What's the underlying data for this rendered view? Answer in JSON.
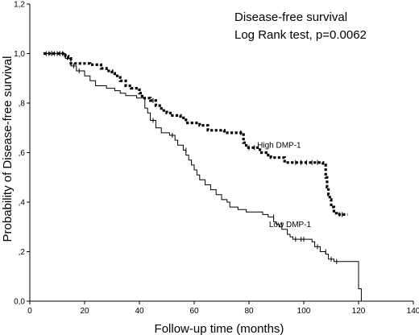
{
  "chart_data": {
    "type": "line",
    "title": "Disease-free survival",
    "subtitle": "Log Rank test,  p=0.0062",
    "xlabel": "Follow-up time (months)",
    "ylabel": "Probability of Disease-free survival",
    "xlim": [
      0,
      140
    ],
    "ylim": [
      0,
      1.2
    ],
    "x_ticks": [
      0,
      20,
      40,
      60,
      80,
      100,
      120,
      140
    ],
    "y_ticks": [
      {
        "value": 0.0,
        "label": "0,0"
      },
      {
        "value": 0.2,
        "label": ",2"
      },
      {
        "value": 0.4,
        "label": ",4"
      },
      {
        "value": 0.6,
        "label": ",6"
      },
      {
        "value": 0.8,
        "label": ",8"
      },
      {
        "value": 1.0,
        "label": "1,0"
      },
      {
        "value": 1.2,
        "label": "1,2"
      }
    ],
    "grid": false,
    "legend": "none",
    "series": [
      {
        "name": "High DMP-1",
        "style": "dotted",
        "label_at": [
          91,
          0.62
        ],
        "steps": [
          [
            5,
            1.0
          ],
          [
            13,
            0.99
          ],
          [
            14,
            0.98
          ],
          [
            15,
            0.96
          ],
          [
            22,
            0.955
          ],
          [
            26,
            0.94
          ],
          [
            28,
            0.93
          ],
          [
            30,
            0.92
          ],
          [
            31,
            0.91
          ],
          [
            33,
            0.89
          ],
          [
            35,
            0.87
          ],
          [
            37,
            0.86
          ],
          [
            40,
            0.84
          ],
          [
            41,
            0.82
          ],
          [
            44,
            0.81
          ],
          [
            46,
            0.79
          ],
          [
            48,
            0.77
          ],
          [
            50,
            0.76
          ],
          [
            52,
            0.75
          ],
          [
            55,
            0.74
          ],
          [
            57,
            0.72
          ],
          [
            62,
            0.71
          ],
          [
            65,
            0.69
          ],
          [
            71,
            0.68
          ],
          [
            78,
            0.64
          ],
          [
            79,
            0.62
          ],
          [
            84,
            0.6
          ],
          [
            87,
            0.59
          ],
          [
            88,
            0.58
          ],
          [
            93,
            0.56
          ],
          [
            107,
            0.55
          ],
          [
            108,
            0.5
          ],
          [
            108.5,
            0.46
          ],
          [
            109,
            0.43
          ],
          [
            109.5,
            0.41
          ],
          [
            110,
            0.38
          ],
          [
            111,
            0.355
          ],
          [
            112,
            0.35
          ],
          [
            116,
            0.35
          ]
        ],
        "censored": [
          [
            6,
            1.0
          ],
          [
            7,
            1.0
          ],
          [
            8,
            1.0
          ],
          [
            9,
            1.0
          ],
          [
            10,
            1.0
          ],
          [
            11,
            1.0
          ],
          [
            12,
            1.0
          ],
          [
            45,
            0.81
          ],
          [
            77,
            0.68
          ],
          [
            80,
            0.62
          ],
          [
            82,
            0.62
          ],
          [
            97,
            0.56
          ],
          [
            99,
            0.56
          ],
          [
            101,
            0.56
          ],
          [
            103,
            0.56
          ],
          [
            105,
            0.56
          ],
          [
            113,
            0.35
          ],
          [
            114,
            0.35
          ]
        ]
      },
      {
        "name": "Low DMP-1",
        "style": "solid",
        "label_at": [
          95,
          0.3
        ],
        "steps": [
          [
            5,
            1.0
          ],
          [
            13,
            0.98
          ],
          [
            15,
            0.95
          ],
          [
            17,
            0.93
          ],
          [
            20,
            0.91
          ],
          [
            22,
            0.89
          ],
          [
            24,
            0.87
          ],
          [
            28,
            0.86
          ],
          [
            31,
            0.85
          ],
          [
            33,
            0.84
          ],
          [
            35,
            0.83
          ],
          [
            39,
            0.82
          ],
          [
            42,
            0.78
          ],
          [
            43,
            0.76
          ],
          [
            44,
            0.73
          ],
          [
            46,
            0.7
          ],
          [
            48,
            0.68
          ],
          [
            51,
            0.67
          ],
          [
            53,
            0.65
          ],
          [
            54,
            0.63
          ],
          [
            56,
            0.61
          ],
          [
            57,
            0.59
          ],
          [
            58,
            0.57
          ],
          [
            59,
            0.55
          ],
          [
            60,
            0.53
          ],
          [
            61,
            0.51
          ],
          [
            62,
            0.49
          ],
          [
            64,
            0.47
          ],
          [
            66,
            0.45
          ],
          [
            68,
            0.43
          ],
          [
            70,
            0.41
          ],
          [
            72,
            0.4
          ],
          [
            73,
            0.38
          ],
          [
            76,
            0.37
          ],
          [
            79,
            0.36
          ],
          [
            85,
            0.35
          ],
          [
            87,
            0.34
          ],
          [
            89,
            0.32
          ],
          [
            90,
            0.31
          ],
          [
            91,
            0.3
          ],
          [
            92,
            0.29
          ],
          [
            94,
            0.27
          ],
          [
            95,
            0.26
          ],
          [
            96,
            0.25
          ],
          [
            103,
            0.24
          ],
          [
            104,
            0.22
          ],
          [
            106,
            0.2
          ],
          [
            108,
            0.19
          ],
          [
            109,
            0.17
          ],
          [
            111,
            0.16
          ],
          [
            120,
            0.05
          ],
          [
            121,
            0.0
          ]
        ],
        "censored": [
          [
            8,
            1.0
          ],
          [
            10,
            1.0
          ],
          [
            11,
            1.0
          ],
          [
            12,
            1.0
          ],
          [
            16,
            0.95
          ],
          [
            18,
            0.93
          ],
          [
            45,
            0.73
          ],
          [
            52,
            0.67
          ],
          [
            57,
            0.61
          ],
          [
            89,
            0.34
          ],
          [
            92,
            0.31
          ],
          [
            97,
            0.25
          ],
          [
            99,
            0.25
          ],
          [
            100,
            0.25
          ],
          [
            105,
            0.22
          ],
          [
            108,
            0.2
          ],
          [
            110,
            0.17
          ],
          [
            112,
            0.16
          ]
        ]
      }
    ]
  }
}
